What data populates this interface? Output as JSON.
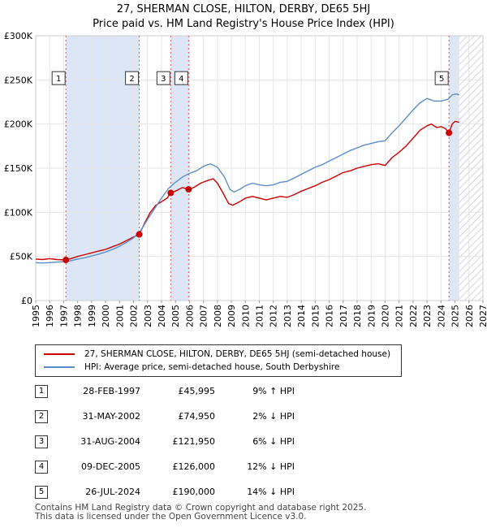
{
  "header": {
    "title_line1": "27, SHERMAN CLOSE, HILTON, DERBY, DE65 5HJ",
    "title_line2": "Price paid vs. HM Land Registry's House Price Index (HPI)"
  },
  "chart_data": {
    "type": "line",
    "xlim": [
      1995,
      2027
    ],
    "ylim": [
      0,
      300000
    ],
    "yticks": [
      {
        "value": 0,
        "label": "£0"
      },
      {
        "value": 50000,
        "label": "£50K"
      },
      {
        "value": 100000,
        "label": "£100K"
      },
      {
        "value": 150000,
        "label": "£150K"
      },
      {
        "value": 200000,
        "label": "£200K"
      },
      {
        "value": 250000,
        "label": "£250K"
      },
      {
        "value": 300000,
        "label": "£300K"
      }
    ],
    "xticks": [
      "1995",
      "1996",
      "1997",
      "1998",
      "1999",
      "2000",
      "2001",
      "2002",
      "2003",
      "2004",
      "2005",
      "2006",
      "2007",
      "2008",
      "2009",
      "2010",
      "2011",
      "2012",
      "2013",
      "2014",
      "2015",
      "2016",
      "2017",
      "2018",
      "2019",
      "2020",
      "2021",
      "2022",
      "2023",
      "2024",
      "2025",
      "2026",
      "2027"
    ],
    "forecast_start": 2025.3,
    "colors": {
      "price": "#cc0000",
      "hpi": "#5b8ec9",
      "shade": "#dde6f7",
      "marker": "#cc0000",
      "vline": "#e05050"
    },
    "shaded_ranges": [
      [
        1997.16,
        2002.41
      ],
      [
        2004.66,
        2005.94
      ],
      [
        2024.57,
        2025.3
      ]
    ],
    "series": [
      {
        "name": "27, SHERMAN CLOSE, HILTON, DERBY, DE65 5HJ (semi-detached house)",
        "key": "price",
        "points": [
          [
            1995,
            47000
          ],
          [
            1995.5,
            46500
          ],
          [
            1996,
            47500
          ],
          [
            1996.5,
            46500
          ],
          [
            1997.16,
            45995
          ],
          [
            1997.5,
            47500
          ],
          [
            1998,
            50000
          ],
          [
            1998.5,
            52000
          ],
          [
            1999,
            54000
          ],
          [
            1999.5,
            56000
          ],
          [
            2000,
            58000
          ],
          [
            2000.5,
            61000
          ],
          [
            2001,
            64000
          ],
          [
            2001.5,
            68000
          ],
          [
            2002,
            72000
          ],
          [
            2002.41,
            74950
          ],
          [
            2002.8,
            88000
          ],
          [
            2003.2,
            100000
          ],
          [
            2003.6,
            108000
          ],
          [
            2004,
            112000
          ],
          [
            2004.4,
            116000
          ],
          [
            2004.66,
            121950
          ],
          [
            2005,
            124000
          ],
          [
            2005.5,
            128000
          ],
          [
            2005.94,
            126000
          ],
          [
            2006.3,
            128000
          ],
          [
            2006.8,
            133000
          ],
          [
            2007.3,
            136000
          ],
          [
            2007.7,
            138000
          ],
          [
            2008,
            133000
          ],
          [
            2008.4,
            122000
          ],
          [
            2008.8,
            110000
          ],
          [
            2009.1,
            108000
          ],
          [
            2009.6,
            112000
          ],
          [
            2010,
            116000
          ],
          [
            2010.5,
            118000
          ],
          [
            2011,
            116000
          ],
          [
            2011.5,
            114000
          ],
          [
            2012,
            116000
          ],
          [
            2012.5,
            118000
          ],
          [
            2013,
            117000
          ],
          [
            2013.5,
            120000
          ],
          [
            2014,
            124000
          ],
          [
            2014.5,
            127000
          ],
          [
            2015,
            130000
          ],
          [
            2015.5,
            134000
          ],
          [
            2016,
            137000
          ],
          [
            2016.5,
            141000
          ],
          [
            2017,
            145000
          ],
          [
            2017.5,
            147000
          ],
          [
            2018,
            150000
          ],
          [
            2018.5,
            152000
          ],
          [
            2019,
            154000
          ],
          [
            2019.5,
            155000
          ],
          [
            2020,
            153000
          ],
          [
            2020.5,
            162000
          ],
          [
            2021,
            168000
          ],
          [
            2021.5,
            175000
          ],
          [
            2022,
            184000
          ],
          [
            2022.5,
            193000
          ],
          [
            2023,
            198000
          ],
          [
            2023.3,
            200000
          ],
          [
            2023.7,
            196000
          ],
          [
            2024,
            197000
          ],
          [
            2024.3,
            195000
          ],
          [
            2024.57,
            190000
          ],
          [
            2024.8,
            200000
          ],
          [
            2025.0,
            203000
          ],
          [
            2025.3,
            202000
          ]
        ]
      },
      {
        "name": "HPI: Average price, semi-detached house, South Derbyshire",
        "key": "hpi",
        "points": [
          [
            1995,
            43000
          ],
          [
            1995.5,
            42500
          ],
          [
            1996,
            43000
          ],
          [
            1996.5,
            43500
          ],
          [
            1997,
            44000
          ],
          [
            1997.5,
            45000
          ],
          [
            1998,
            47000
          ],
          [
            1998.5,
            48500
          ],
          [
            1999,
            50500
          ],
          [
            1999.5,
            52500
          ],
          [
            2000,
            55000
          ],
          [
            2000.5,
            58000
          ],
          [
            2001,
            61500
          ],
          [
            2001.5,
            66000
          ],
          [
            2002,
            71000
          ],
          [
            2002.5,
            79000
          ],
          [
            2003,
            92000
          ],
          [
            2003.5,
            104000
          ],
          [
            2004,
            116000
          ],
          [
            2004.5,
            127000
          ],
          [
            2005,
            134000
          ],
          [
            2005.5,
            140000
          ],
          [
            2006,
            144000
          ],
          [
            2006.5,
            147000
          ],
          [
            2007,
            152000
          ],
          [
            2007.5,
            155000
          ],
          [
            2008,
            151000
          ],
          [
            2008.5,
            140000
          ],
          [
            2008.9,
            126000
          ],
          [
            2009.2,
            123000
          ],
          [
            2009.6,
            126000
          ],
          [
            2010,
            130000
          ],
          [
            2010.5,
            133000
          ],
          [
            2011,
            131000
          ],
          [
            2011.5,
            130000
          ],
          [
            2012,
            131000
          ],
          [
            2012.5,
            134000
          ],
          [
            2013,
            135000
          ],
          [
            2013.5,
            139000
          ],
          [
            2014,
            143000
          ],
          [
            2014.5,
            147000
          ],
          [
            2015,
            151000
          ],
          [
            2015.5,
            154000
          ],
          [
            2016,
            158000
          ],
          [
            2016.5,
            162000
          ],
          [
            2017,
            166000
          ],
          [
            2017.5,
            170000
          ],
          [
            2018,
            173000
          ],
          [
            2018.5,
            176000
          ],
          [
            2019,
            178000
          ],
          [
            2019.5,
            180000
          ],
          [
            2020,
            181000
          ],
          [
            2020.5,
            190000
          ],
          [
            2021,
            198000
          ],
          [
            2021.5,
            207000
          ],
          [
            2022,
            216000
          ],
          [
            2022.5,
            224000
          ],
          [
            2023,
            229000
          ],
          [
            2023.5,
            226000
          ],
          [
            2024,
            226000
          ],
          [
            2024.5,
            228000
          ],
          [
            2024.8,
            233000
          ],
          [
            2025.1,
            234000
          ],
          [
            2025.3,
            233000
          ]
        ]
      }
    ],
    "sales_markers": [
      {
        "id": "1",
        "x": 1997.16,
        "price": 45995
      },
      {
        "id": "2",
        "x": 2002.41,
        "price": 74950
      },
      {
        "id": "3",
        "x": 2004.66,
        "price": 121950
      },
      {
        "id": "4",
        "x": 2005.94,
        "price": 126000
      },
      {
        "id": "5",
        "x": 2024.57,
        "price": 190000
      }
    ],
    "label_box_y": 252000
  },
  "legend": {
    "price_label": "27, SHERMAN CLOSE, HILTON, DERBY, DE65 5HJ (semi-detached house)",
    "hpi_label": "HPI: Average price, semi-detached house, South Derbyshire"
  },
  "sales": [
    {
      "num": "1",
      "date": "28-FEB-1997",
      "price": "£45,995",
      "hpi": "9% ↑ HPI"
    },
    {
      "num": "2",
      "date": "31-MAY-2002",
      "price": "£74,950",
      "hpi": "2% ↓ HPI"
    },
    {
      "num": "3",
      "date": "31-AUG-2004",
      "price": "£121,950",
      "hpi": "6% ↓ HPI"
    },
    {
      "num": "4",
      "date": "09-DEC-2005",
      "price": "£126,000",
      "hpi": "12% ↓ HPI"
    },
    {
      "num": "5",
      "date": "26-JUL-2024",
      "price": "£190,000",
      "hpi": "14% ↓ HPI"
    }
  ],
  "footer": {
    "line1": "Contains HM Land Registry data © Crown copyright and database right 2025.",
    "line2": "This data is licensed under the Open Government Licence v3.0."
  }
}
